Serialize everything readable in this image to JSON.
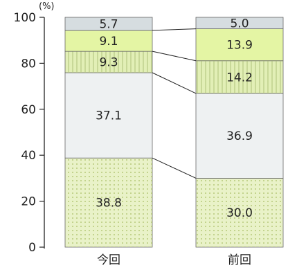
{
  "chart_data": {
    "type": "bar",
    "stacked": true,
    "percent": true,
    "categories": [
      "今回",
      "前回"
    ],
    "series": [
      {
        "values": [
          38.8,
          30.0
        ],
        "color": "#e9f2c8",
        "pattern": "dots"
      },
      {
        "values": [
          37.1,
          36.9
        ],
        "color": "#eef1f2",
        "pattern": "none"
      },
      {
        "values": [
          9.3,
          14.2
        ],
        "color": "#e2efb6",
        "pattern": "vlines"
      },
      {
        "values": [
          9.1,
          13.9
        ],
        "color": "#e4f5a4",
        "pattern": "none"
      },
      {
        "values": [
          5.7,
          5.0
        ],
        "color": "#d6dde0",
        "pattern": "none"
      }
    ],
    "value_labels": [
      [
        "38.8",
        "37.1",
        "9.3",
        "9.1",
        "5.7"
      ],
      [
        "30.0",
        "36.9",
        "14.2",
        "13.9",
        "5.0"
      ]
    ],
    "yunit": "(%)",
    "yticks": [
      0,
      20,
      40,
      60,
      80,
      100
    ],
    "ylim": [
      0,
      100
    ],
    "connector_lines": true,
    "grid": false,
    "legend": "none"
  }
}
